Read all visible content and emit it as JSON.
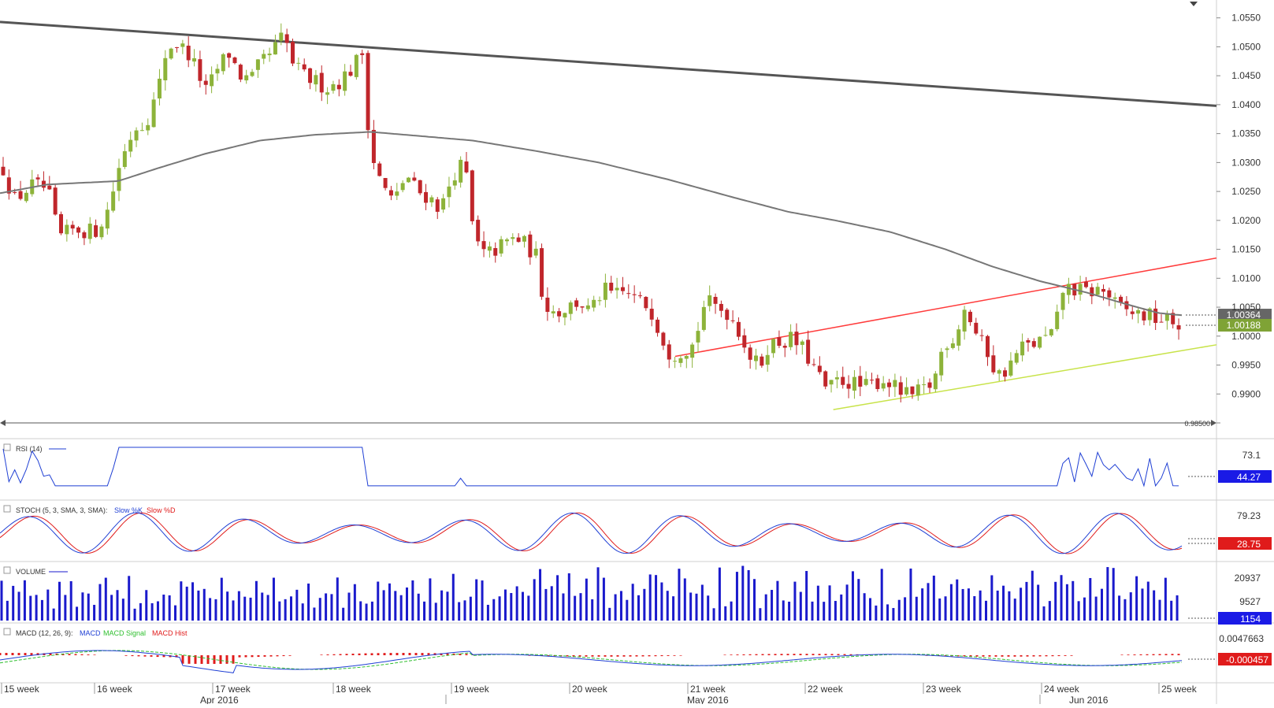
{
  "chart_data": {
    "type": "candlestick",
    "price_pane": {
      "y_ticks": [
        "1.0550",
        "1.0500",
        "1.0450",
        "1.0400",
        "1.0350",
        "1.0300",
        "1.0250",
        "1.0200",
        "1.0150",
        "1.0100",
        "1.0050",
        "1.0000",
        "0.9950",
        "0.9900",
        "0.9850"
      ],
      "ylim": [
        0.985,
        1.057
      ],
      "horizontal_line_label": "0.98500",
      "horizontal_line_value": 0.985,
      "ma_last_label": "1.00364",
      "ma_last_value": 1.00364,
      "last_price_label": "1.00188",
      "last_price_value": 1.00188,
      "trendlines": [
        {
          "name": "resistance",
          "color": "#555555",
          "from": [
            0,
            1.0543
          ],
          "to": [
            1,
            1.0398
          ]
        },
        {
          "name": "channel-upper",
          "color": "#ff3b3b",
          "from": [
            0.555,
            0.9965
          ],
          "to": [
            1,
            1.0135
          ]
        },
        {
          "name": "channel-lower",
          "color": "#c8e34a",
          "from": [
            0.685,
            0.9873
          ],
          "to": [
            1,
            0.9985
          ]
        }
      ],
      "moving_average_color": "#777777",
      "bull_color": "#8db33a",
      "bear_color": "#c0262b"
    },
    "rsi": {
      "title": "RSI (14)",
      "tick": "73.1",
      "last": "44.27",
      "color": "#1f3fd4",
      "last_value": 44.27
    },
    "stoch": {
      "title": "STOCH (5, 3, SMA, 3, SMA):",
      "k_label": "Slow %K",
      "d_label": "Slow %D",
      "tick": "79.23",
      "last": "28.75",
      "k_color": "#1f3fd4",
      "d_color": "#e01b1b",
      "last_value": 28.75
    },
    "volume": {
      "title": "VOLUME",
      "ticks": [
        "20937",
        "9527"
      ],
      "last": "1154",
      "color": "#1a1acc",
      "last_value": 1154
    },
    "macd": {
      "title": "MACD (12, 26, 9):",
      "macd_label": "MACD",
      "signal_label": "MACD Signal",
      "hist_label": "MACD Hist",
      "tick": "0.0047663",
      "last": "-0.000457",
      "macd_color": "#1f3fd4",
      "signal_color": "#2fbf2f",
      "hist_color": "#e01b1b",
      "last_value": -0.000457
    },
    "time_axis": {
      "weeks": [
        "15 week",
        "16 week",
        "17 week",
        "18 week",
        "19 week",
        "20 week",
        "21 week",
        "22 week",
        "23 week",
        "24 week",
        "25 week"
      ],
      "months": [
        "Apr 2016",
        "May 2016",
        "Jun 2016"
      ]
    }
  }
}
